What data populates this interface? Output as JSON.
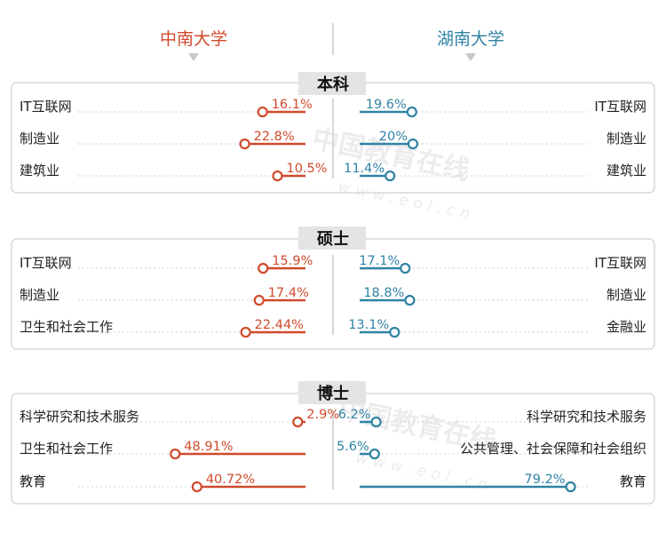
{
  "header": {
    "left_university": "中南大学",
    "right_university": "湖南大学"
  },
  "colors": {
    "left": "#d04a2c",
    "right": "#2f83a4",
    "panel_border": "#d9d9d9",
    "title_bg": "#e4e4e4",
    "divider": "#d8d8d8",
    "dots": "#cfcfcf"
  },
  "chart_data": [
    {
      "type": "bar",
      "title": "本科",
      "series": [
        {
          "name": "中南大学",
          "categories": [
            "IT互联网",
            "制造业",
            "建筑业"
          ],
          "values": [
            16.1,
            22.8,
            10.5
          ],
          "labels": [
            "16.1%",
            "22.8%",
            "10.5%"
          ]
        },
        {
          "name": "湖南大学",
          "categories": [
            "IT互联网",
            "制造业",
            "建筑业"
          ],
          "values": [
            19.6,
            20,
            11.4
          ],
          "labels": [
            "19.6%",
            "20%",
            "11.4%"
          ]
        }
      ]
    },
    {
      "type": "bar",
      "title": "硕士",
      "series": [
        {
          "name": "中南大学",
          "categories": [
            "IT互联网",
            "制造业",
            "卫生和社会工作"
          ],
          "values": [
            15.9,
            17.4,
            22.44
          ],
          "labels": [
            "15.9%",
            "17.4%",
            "22.44%"
          ]
        },
        {
          "name": "湖南大学",
          "categories": [
            "IT互联网",
            "制造业",
            "金融业"
          ],
          "values": [
            17.1,
            18.8,
            13.1
          ],
          "labels": [
            "17.1%",
            "18.8%",
            "13.1%"
          ]
        }
      ]
    },
    {
      "type": "bar",
      "title": "博士",
      "series": [
        {
          "name": "中南大学",
          "categories": [
            "科学研究和技术服务",
            "卫生和社会工作",
            "教育"
          ],
          "values": [
            2.9,
            48.91,
            40.72
          ],
          "labels": [
            "2.9%",
            "48.91%",
            "40.72%"
          ]
        },
        {
          "name": "湖南大学",
          "categories": [
            "科学研究和技术服务",
            "公共管理、社会保障和社会组织",
            "教育"
          ],
          "values": [
            6.2,
            5.6,
            79.2
          ],
          "labels": [
            "6.2%",
            "5.6%",
            "79.2%"
          ]
        }
      ]
    }
  ]
}
